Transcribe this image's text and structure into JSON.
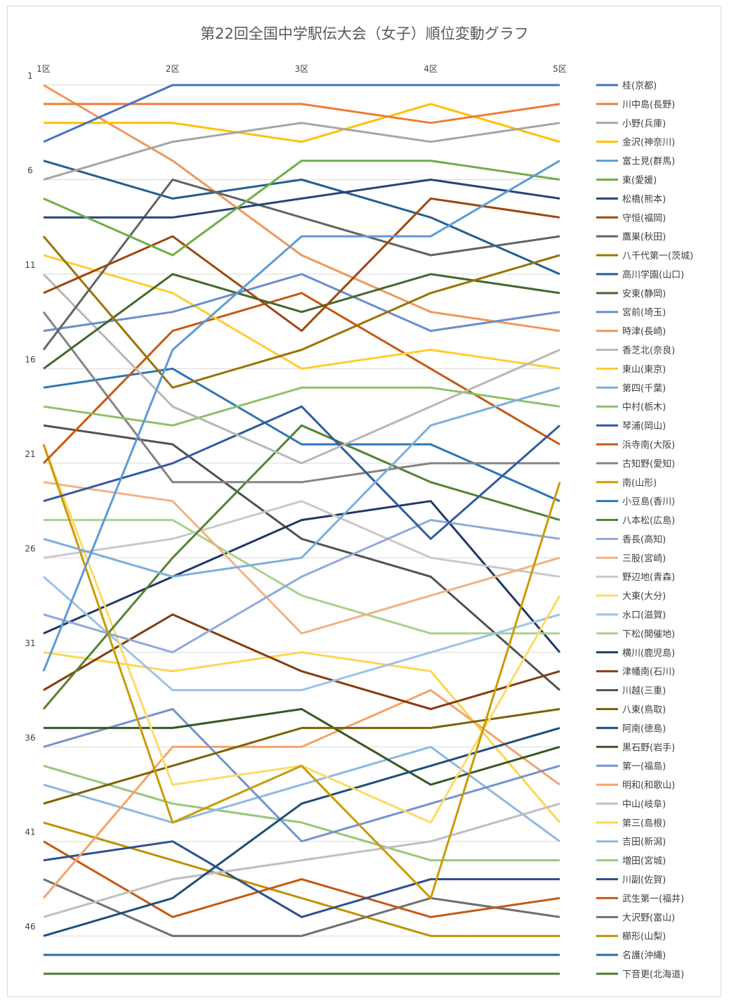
{
  "chart_data": {
    "type": "line",
    "title": "第22回全国中学駅伝大会（女子）順位変動グラフ",
    "x": [
      "1区",
      "2区",
      "3区",
      "4区",
      "5区"
    ],
    "y_ticks": [
      "1",
      "6",
      "11",
      "16",
      "21",
      "26",
      "31",
      "36",
      "41",
      "46"
    ],
    "ylim": [
      1,
      48
    ],
    "y_inverted": true,
    "grid": true,
    "legend_position": "right",
    "series": [
      {
        "name": "桂(京都)",
        "color": "#4472C4",
        "values": [
          4,
          1,
          1,
          1,
          1
        ]
      },
      {
        "name": "川中島(長野)",
        "color": "#ED7D31",
        "values": [
          2,
          2,
          2,
          3,
          2
        ]
      },
      {
        "name": "小野(兵庫)",
        "color": "#A5A5A5",
        "values": [
          6,
          4,
          3,
          4,
          3
        ]
      },
      {
        "name": "金沢(神奈川)",
        "color": "#FFC000",
        "values": [
          3,
          3,
          4,
          2,
          4
        ]
      },
      {
        "name": "富士見(群馬)",
        "color": "#5B9BD5",
        "values": [
          32,
          15,
          9,
          9,
          5
        ]
      },
      {
        "name": "東(愛媛)",
        "color": "#70AD47",
        "values": [
          7,
          10,
          5,
          5,
          6
        ]
      },
      {
        "name": "松橋(熊本)",
        "color": "#264478",
        "values": [
          8,
          8,
          7,
          6,
          7
        ]
      },
      {
        "name": "守恒(福岡)",
        "color": "#9E480E",
        "values": [
          12,
          9,
          14,
          7,
          8
        ]
      },
      {
        "name": "鷹巣(秋田)",
        "color": "#636363",
        "values": [
          15,
          6,
          8,
          10,
          9
        ]
      },
      {
        "name": "八千代第一(茨城)",
        "color": "#997300",
        "values": [
          9,
          17,
          15,
          12,
          10
        ]
      },
      {
        "name": "高川学園(山口)",
        "color": "#255E91",
        "values": [
          5,
          7,
          6,
          8,
          11
        ]
      },
      {
        "name": "安東(静岡)",
        "color": "#43682B",
        "values": [
          16,
          11,
          13,
          11,
          12
        ]
      },
      {
        "name": "宮前(埼玉)",
        "color": "#698ED0",
        "values": [
          14,
          13,
          11,
          14,
          13
        ]
      },
      {
        "name": "時津(長崎)",
        "color": "#F1975A",
        "values": [
          1,
          5,
          10,
          13,
          14
        ]
      },
      {
        "name": "香芝北(奈良)",
        "color": "#B7B7B7",
        "values": [
          11,
          18,
          21,
          18,
          15
        ]
      },
      {
        "name": "東山(東京)",
        "color": "#FFCD33",
        "values": [
          10,
          12,
          16,
          15,
          16
        ]
      },
      {
        "name": "第四(千葉)",
        "color": "#7CAFDD",
        "values": [
          25,
          27,
          26,
          19,
          17
        ]
      },
      {
        "name": "中村(栃木)",
        "color": "#8CC168",
        "values": [
          18,
          19,
          17,
          17,
          18
        ]
      },
      {
        "name": "琴浦(岡山)",
        "color": "#335AA1",
        "values": [
          23,
          21,
          18,
          25,
          19
        ]
      },
      {
        "name": "浜寺南(大阪)",
        "color": "#C65911",
        "values": [
          21,
          14,
          12,
          16,
          20
        ]
      },
      {
        "name": "古知野(愛知)",
        "color": "#848484",
        "values": [
          13,
          22,
          22,
          21,
          21
        ]
      },
      {
        "name": "南(山形)",
        "color": "#CC9A00",
        "values": [
          20,
          40,
          37,
          44,
          22
        ]
      },
      {
        "name": "小豆島(香川)",
        "color": "#2E75B6",
        "values": [
          17,
          16,
          20,
          20,
          23
        ]
      },
      {
        "name": "八本松(広島)",
        "color": "#548235",
        "values": [
          34,
          26,
          19,
          22,
          24
        ]
      },
      {
        "name": "香長(高知)",
        "color": "#8FAADC",
        "values": [
          29,
          31,
          27,
          24,
          25
        ]
      },
      {
        "name": "三股(宮崎)",
        "color": "#F4B183",
        "values": [
          22,
          23,
          30,
          28,
          26
        ]
      },
      {
        "name": "野辺地(青森)",
        "color": "#C9C9C9",
        "values": [
          26,
          25,
          23,
          26,
          27
        ]
      },
      {
        "name": "大東(大分)",
        "color": "#FFD966",
        "values": [
          20,
          38,
          37,
          40,
          28
        ]
      },
      {
        "name": "水口(滋賀)",
        "color": "#9DC3E6",
        "values": [
          27,
          33,
          33,
          31,
          29
        ]
      },
      {
        "name": "下松(開催地)",
        "color": "#A9D18E",
        "values": [
          24,
          24,
          28,
          30,
          30
        ]
      },
      {
        "name": "横川(鹿児島)",
        "color": "#203864",
        "values": [
          30,
          27,
          24,
          23,
          31
        ]
      },
      {
        "name": "津幡南(石川)",
        "color": "#843C0C",
        "values": [
          33,
          29,
          32,
          34,
          32
        ]
      },
      {
        "name": "川越(三重)",
        "color": "#525252",
        "values": [
          19,
          20,
          25,
          27,
          33
        ]
      },
      {
        "name": "八東(鳥取)",
        "color": "#7F6000",
        "values": [
          39,
          37,
          35,
          35,
          34
        ]
      },
      {
        "name": "阿南(徳島)",
        "color": "#1F4E79",
        "values": [
          46,
          44,
          39,
          37,
          35
        ]
      },
      {
        "name": "黒石野(岩手)",
        "color": "#385723",
        "values": [
          35,
          35,
          34,
          38,
          36
        ]
      },
      {
        "name": "第一(福島)",
        "color": "#7393D0",
        "values": [
          36,
          34,
          41,
          39,
          37
        ]
      },
      {
        "name": "明和(和歌山)",
        "color": "#F4A26B",
        "values": [
          44,
          36,
          36,
          33,
          38
        ]
      },
      {
        "name": "中山(岐阜)",
        "color": "#BFBFBF",
        "values": [
          45,
          43,
          42,
          41,
          39
        ]
      },
      {
        "name": "第三(島根)",
        "color": "#FFD54F",
        "values": [
          31,
          32,
          31,
          32,
          40
        ]
      },
      {
        "name": "吉田(新潟)",
        "color": "#8EB8E0",
        "values": [
          38,
          40,
          38,
          36,
          41
        ]
      },
      {
        "name": "増田(宮城)",
        "color": "#97C77A",
        "values": [
          37,
          39,
          40,
          42,
          42
        ]
      },
      {
        "name": "川副(佐賀)",
        "color": "#2F4F8F",
        "values": [
          42,
          41,
          45,
          43,
          43
        ]
      },
      {
        "name": "武生第一(福井)",
        "color": "#C55A11",
        "values": [
          41,
          45,
          43,
          45,
          44
        ]
      },
      {
        "name": "大沢野(富山)",
        "color": "#6F6F6F",
        "values": [
          43,
          46,
          46,
          44,
          45
        ]
      },
      {
        "name": "櫛形(山梨)",
        "color": "#BF9000",
        "values": [
          40,
          42,
          44,
          46,
          46
        ]
      },
      {
        "name": "名護(沖縄)",
        "color": "#2E6DA4",
        "values": [
          47,
          47,
          47,
          47,
          47
        ]
      },
      {
        "name": "下音更(北海道)",
        "color": "#4E7A2E",
        "values": [
          48,
          48,
          48,
          48,
          48
        ]
      }
    ]
  }
}
